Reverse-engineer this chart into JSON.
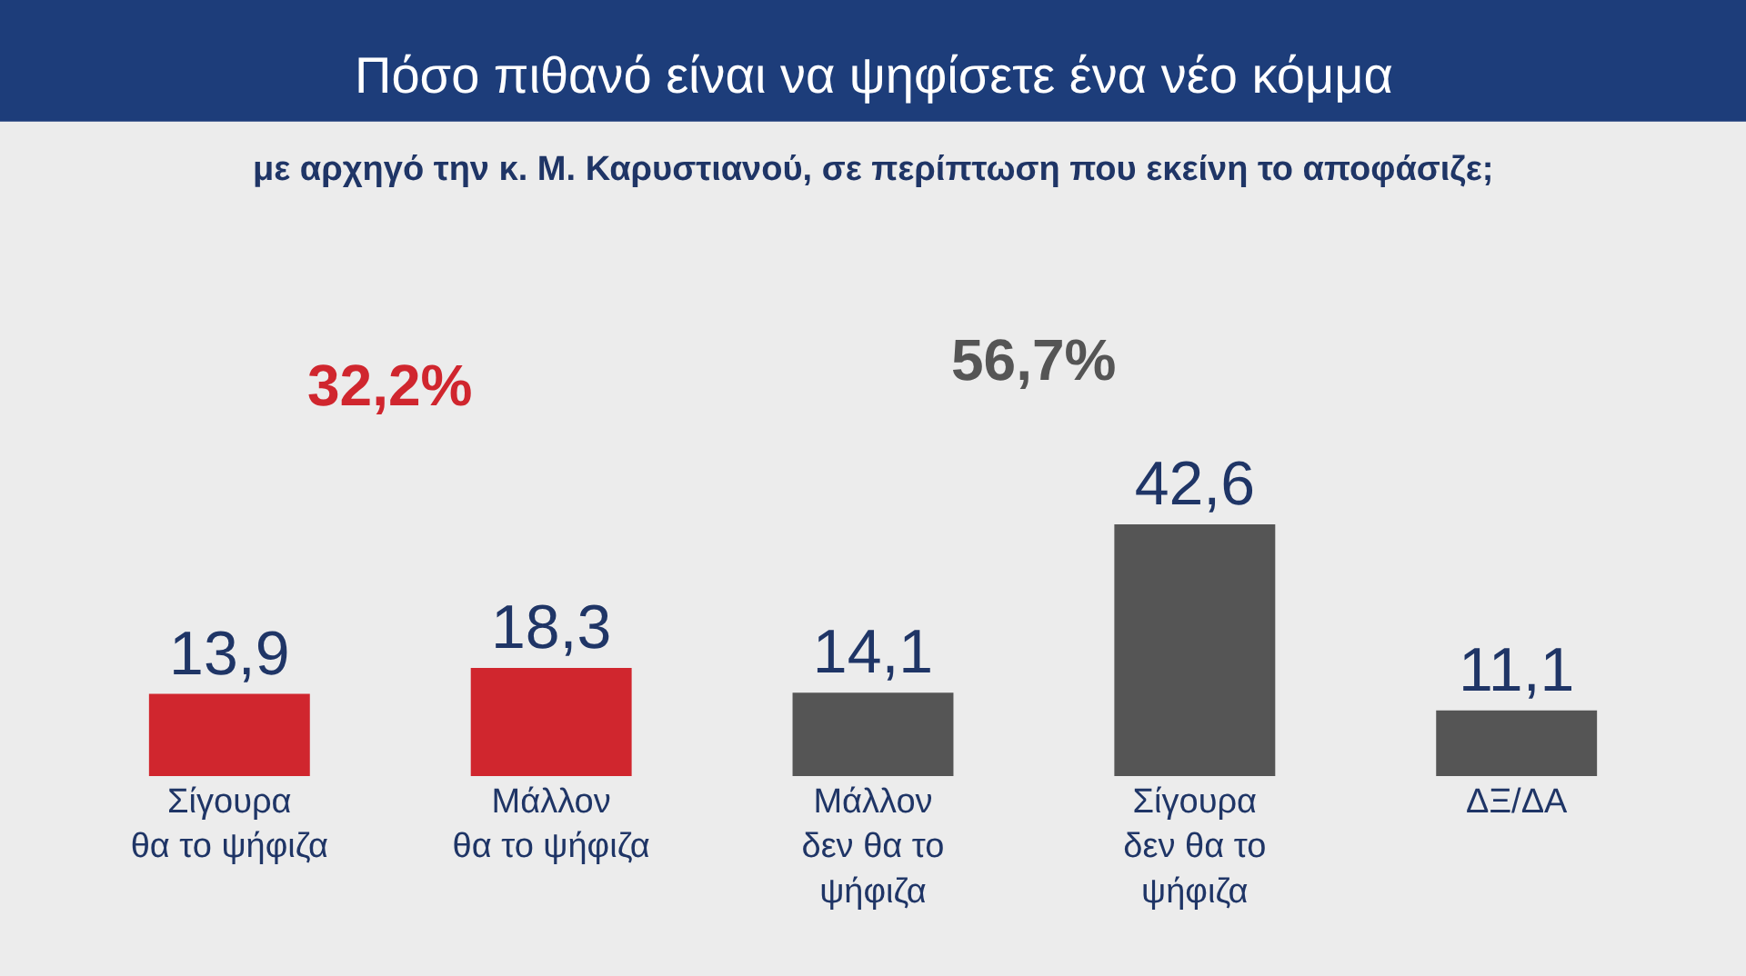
{
  "chart_data": {
    "type": "bar",
    "title": "Πόσο πιθανό είναι να ψηφίσετε ένα νέο κόμμα",
    "subtitle": "με αρχηγό την κ. Μ. Καρυστιανού, σε περίπτωση που εκείνη το αποφάσιζε;",
    "categories": [
      "Σίγουρα\nθα το ψήφιζα",
      "Μάλλον\nθα το ψήφιζα",
      "Μάλλον\nδεν θα το\nψήφιζα",
      "Σίγουρα\nδεν θα το\nψήφιζα",
      "ΔΞ/ΔΑ"
    ],
    "values": [
      13.9,
      18.3,
      14.1,
      42.6,
      11.1
    ],
    "value_labels": [
      "13,9",
      "18,3",
      "14,1",
      "42,6",
      "11,1"
    ],
    "colors": [
      "#d0262e",
      "#d0262e",
      "#555555",
      "#555555",
      "#555555"
    ],
    "annotations": [
      "32,2%",
      "56,7%"
    ],
    "grid": false,
    "legend": false
  }
}
